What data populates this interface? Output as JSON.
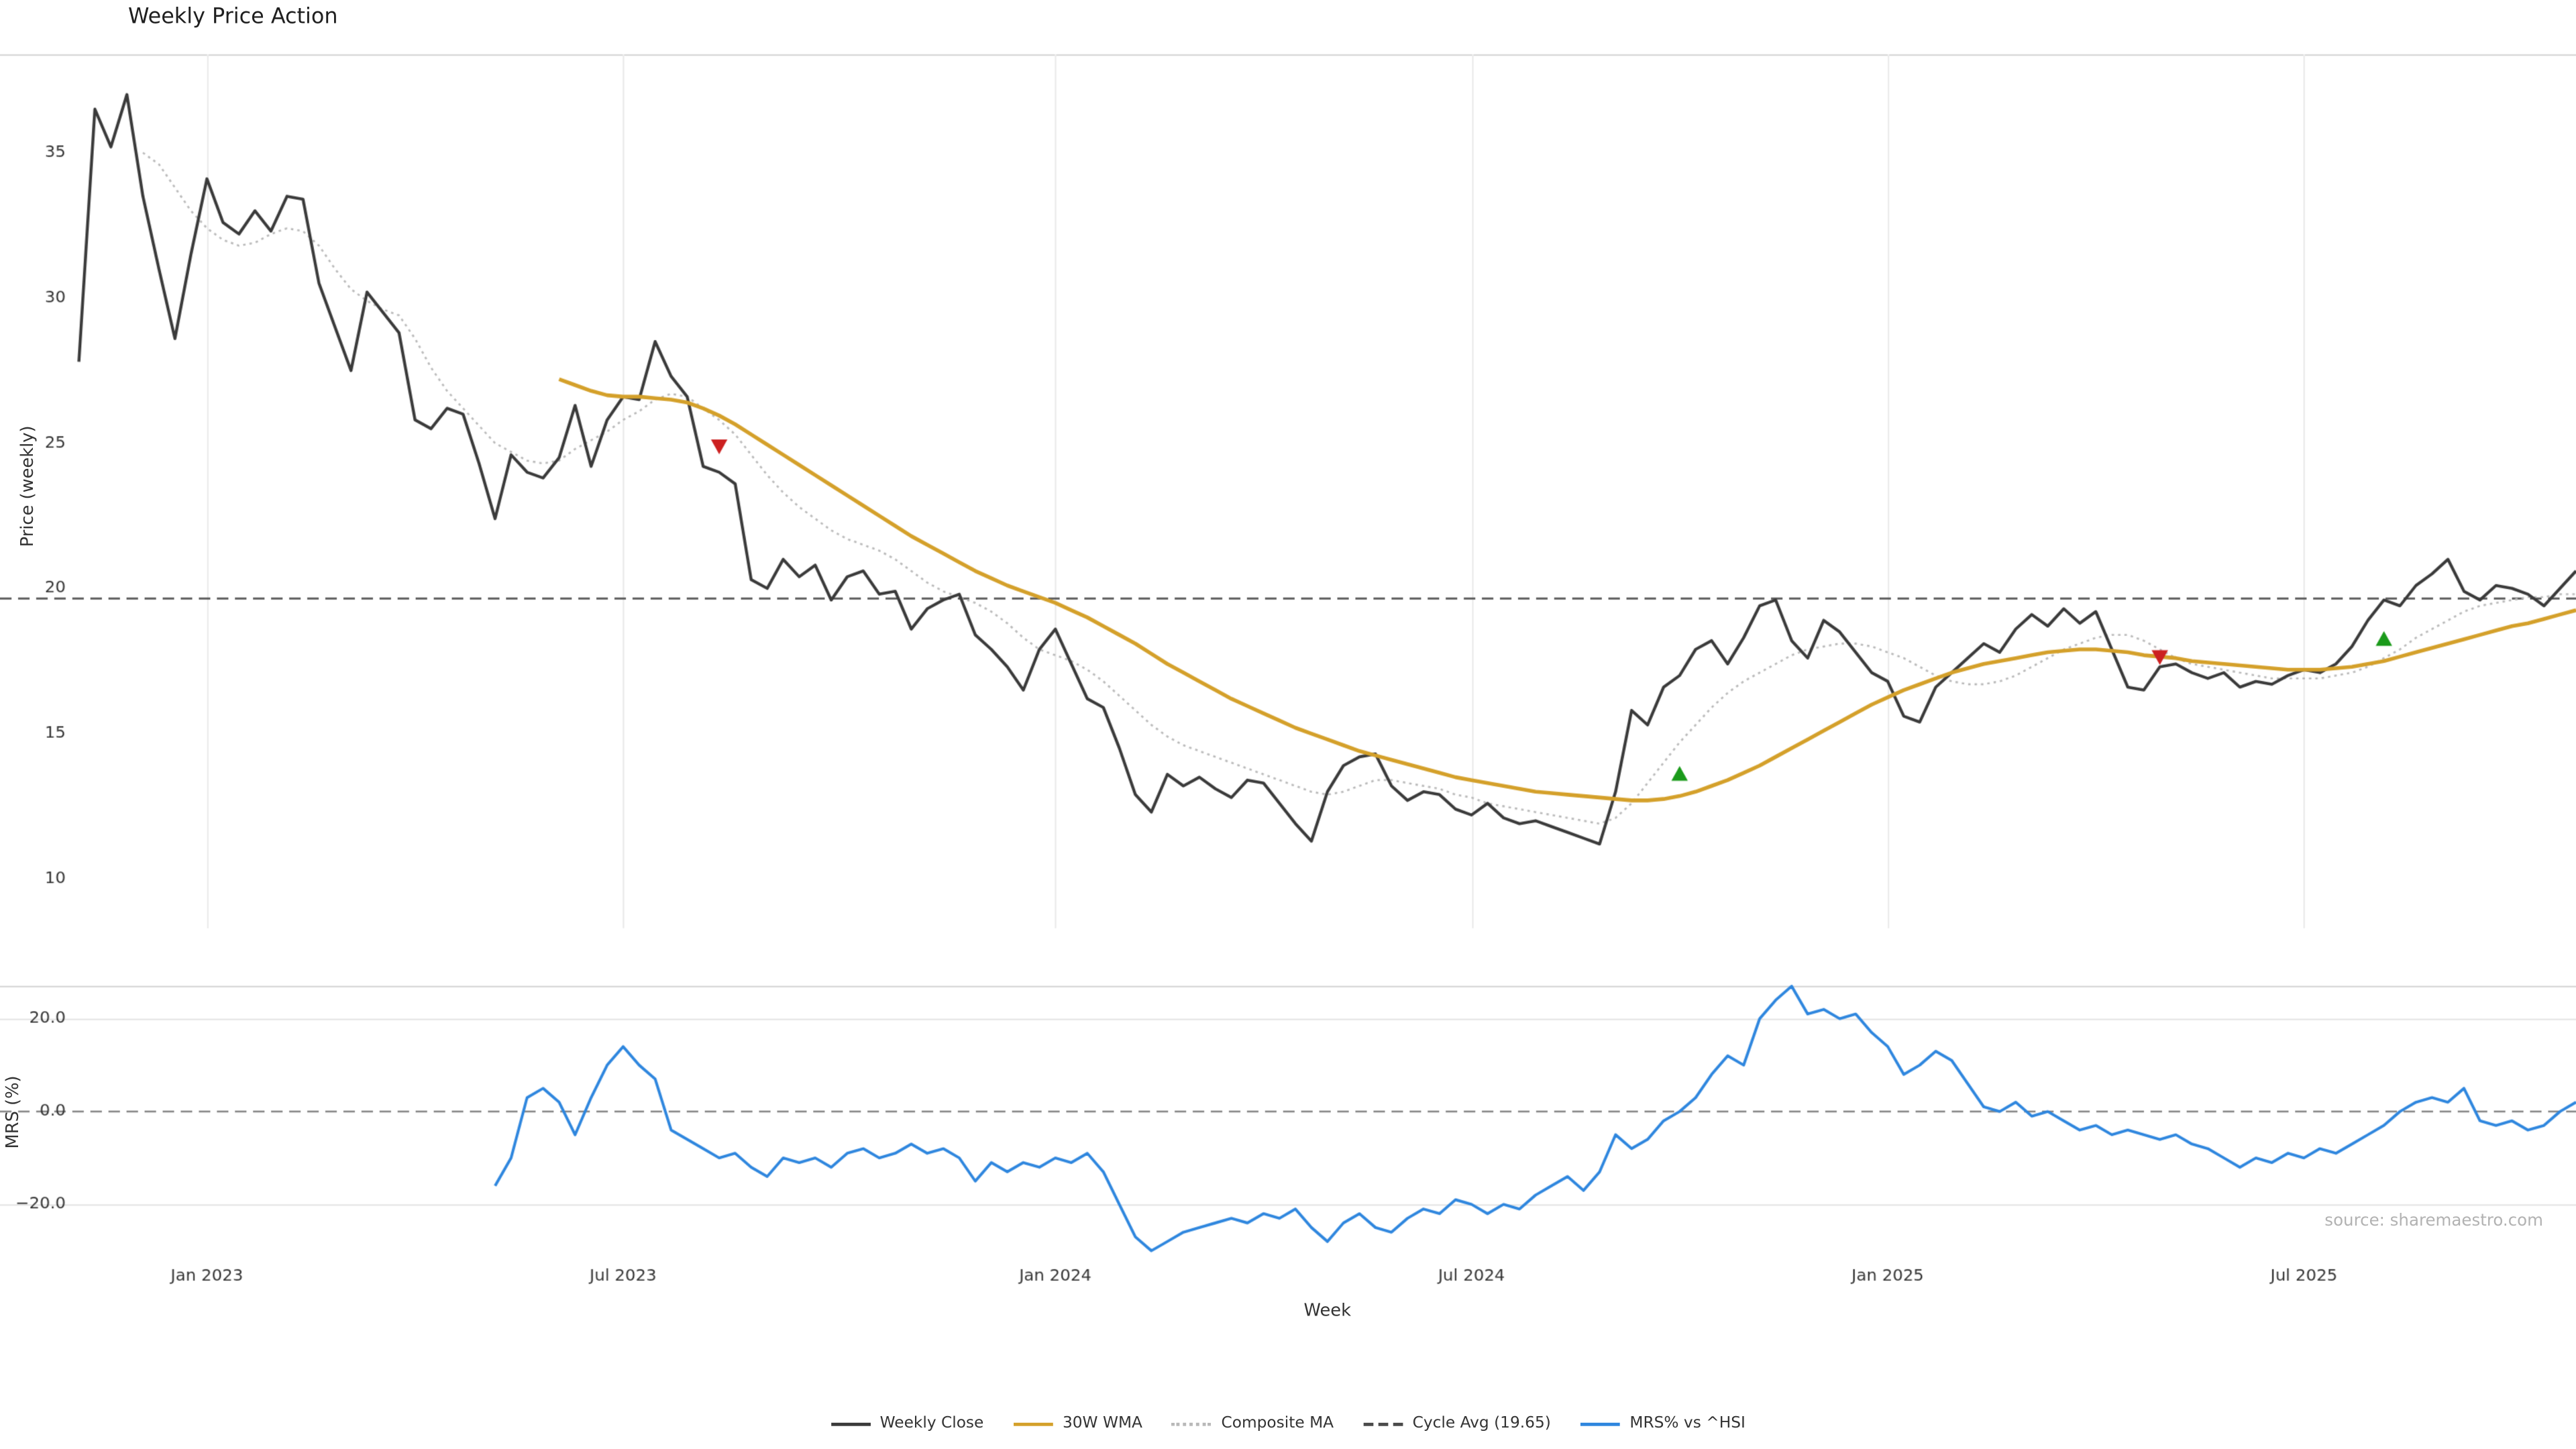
{
  "title": "Weekly Price Action",
  "source_note": "source: sharemaestro.com",
  "colors": {
    "close": "#3a3a3a",
    "wma": "#d4a02a",
    "composite": "#b9b9b9",
    "cycle_avg": "#4a4a4a",
    "mrs": "#2e86de",
    "buy_marker": "#1a9a1a",
    "sell_marker": "#cc2020",
    "grid": "#ececec",
    "grid_h": "#e7e7e7",
    "spine": "#d9d9d9",
    "zero_dash": "#8a8a8a",
    "tick_text": "#333333"
  },
  "chart_data": {
    "type": "line",
    "title": "Weekly Price Action",
    "xlabel": "Week",
    "x_count": 157,
    "xticks": [
      {
        "index": 8,
        "label": "Jan 2023"
      },
      {
        "index": 34,
        "label": "Jul 2023"
      },
      {
        "index": 61,
        "label": "Jan 2024"
      },
      {
        "index": 87,
        "label": "Jul 2024"
      },
      {
        "index": 113,
        "label": "Jan 2025"
      },
      {
        "index": 139,
        "label": "Jul 2025"
      }
    ],
    "panels": [
      {
        "name": "price",
        "ylabel": "Price (weekly)",
        "ylim": [
          8.3,
          38.39
        ],
        "yticks": [
          10,
          15,
          20,
          25,
          30,
          35
        ],
        "ytick_labels": [
          "10",
          "15",
          "20",
          "25",
          "30",
          "35"
        ],
        "cycle_avg": 19.65,
        "grid": "vertical"
      },
      {
        "name": "mrs",
        "ylabel": "MRS (%)",
        "ylim": [
          -31.3,
          27.1
        ],
        "yticks": [
          -20,
          0,
          20
        ],
        "ytick_labels": [
          "−20.0",
          "0.0",
          "20.0"
        ],
        "zero_line": 0,
        "grid": "horizontal"
      }
    ],
    "series": [
      {
        "name": "Weekly Close",
        "panel": "price",
        "color": "#3a3a3a",
        "width": 1.8,
        "dash": null,
        "start": 0,
        "values": [
          27.8,
          36.5,
          35.2,
          37.0,
          33.5,
          31.0,
          28.6,
          31.5,
          34.1,
          32.6,
          32.2,
          33.0,
          32.3,
          33.5,
          33.4,
          30.5,
          29.0,
          27.5,
          30.2,
          29.5,
          28.8,
          25.8,
          25.5,
          26.2,
          26.0,
          24.3,
          22.4,
          24.6,
          24.0,
          23.8,
          24.5,
          26.3,
          24.2,
          25.8,
          26.6,
          26.5,
          28.5,
          27.3,
          26.6,
          24.2,
          24.0,
          23.6,
          20.3,
          20.0,
          21.0,
          20.4,
          20.8,
          19.6,
          20.4,
          20.6,
          19.8,
          19.9,
          18.6,
          19.3,
          19.6,
          19.8,
          18.4,
          17.9,
          17.3,
          16.5,
          17.9,
          18.6,
          17.4,
          16.2,
          15.9,
          14.5,
          12.9,
          12.3,
          13.6,
          13.2,
          13.5,
          13.1,
          12.8,
          13.4,
          13.3,
          12.6,
          11.9,
          11.3,
          13.0,
          13.9,
          14.2,
          14.3,
          13.2,
          12.7,
          13.0,
          12.9,
          12.4,
          12.2,
          12.6,
          12.1,
          11.9,
          12.0,
          11.8,
          11.6,
          11.4,
          11.2,
          13.0,
          15.8,
          15.3,
          16.6,
          17.0,
          17.9,
          18.2,
          17.4,
          18.3,
          19.4,
          19.6,
          18.2,
          17.6,
          18.9,
          18.5,
          17.8,
          17.1,
          16.8,
          15.6,
          15.4,
          16.6,
          17.1,
          17.6,
          18.1,
          17.8,
          18.6,
          19.1,
          18.7,
          19.3,
          18.8,
          19.2,
          17.9,
          16.6,
          16.5,
          17.3,
          17.4,
          17.1,
          16.9,
          17.1,
          16.6,
          16.8,
          16.7,
          17.0,
          17.2,
          17.1,
          17.4,
          18.0,
          18.9,
          19.6,
          19.4,
          20.1,
          20.5,
          21.0,
          19.9,
          19.6,
          20.1,
          20.0,
          19.8,
          19.4,
          20.0,
          20.6
        ]
      },
      {
        "name": "30W WMA",
        "panel": "price",
        "color": "#d4a02a",
        "width": 2.3,
        "dash": null,
        "start": 30,
        "values": [
          27.2,
          27.0,
          26.8,
          26.65,
          26.6,
          26.6,
          26.55,
          26.5,
          26.4,
          26.2,
          25.95,
          25.65,
          25.3,
          24.95,
          24.6,
          24.25,
          23.9,
          23.55,
          23.2,
          22.85,
          22.5,
          22.15,
          21.8,
          21.5,
          21.2,
          20.9,
          20.6,
          20.35,
          20.1,
          19.9,
          19.7,
          19.5,
          19.25,
          19.0,
          18.7,
          18.4,
          18.1,
          17.75,
          17.4,
          17.1,
          16.8,
          16.5,
          16.2,
          15.95,
          15.7,
          15.45,
          15.2,
          15.0,
          14.8,
          14.6,
          14.4,
          14.25,
          14.1,
          13.95,
          13.8,
          13.65,
          13.5,
          13.4,
          13.3,
          13.2,
          13.1,
          13.0,
          12.95,
          12.9,
          12.85,
          12.8,
          12.75,
          12.7,
          12.7,
          12.75,
          12.85,
          13.0,
          13.2,
          13.4,
          13.65,
          13.9,
          14.2,
          14.5,
          14.8,
          15.1,
          15.4,
          15.7,
          16.0,
          16.25,
          16.5,
          16.7,
          16.9,
          17.1,
          17.25,
          17.4,
          17.5,
          17.6,
          17.7,
          17.8,
          17.85,
          17.9,
          17.9,
          17.85,
          17.8,
          17.7,
          17.65,
          17.6,
          17.5,
          17.45,
          17.4,
          17.35,
          17.3,
          17.25,
          17.2,
          17.2,
          17.2,
          17.25,
          17.3,
          17.4,
          17.5,
          17.65,
          17.8,
          17.95,
          18.1,
          18.25,
          18.4,
          18.55,
          18.7,
          18.8,
          18.95,
          19.1,
          19.25
        ]
      },
      {
        "name": "Composite MA",
        "panel": "price",
        "color": "#b9b9b9",
        "width": 1.2,
        "dash": [
          1.5,
          2.4
        ],
        "start": 4,
        "values": [
          35.0,
          34.6,
          33.8,
          33.0,
          32.4,
          32.0,
          31.8,
          31.9,
          32.2,
          32.4,
          32.3,
          31.8,
          31.0,
          30.3,
          29.9,
          29.6,
          29.4,
          28.6,
          27.6,
          26.8,
          26.2,
          25.6,
          25.0,
          24.7,
          24.4,
          24.3,
          24.4,
          24.8,
          25.1,
          25.4,
          25.8,
          26.1,
          26.5,
          26.7,
          26.6,
          26.2,
          25.8,
          25.3,
          24.6,
          23.9,
          23.3,
          22.8,
          22.4,
          22.0,
          21.7,
          21.5,
          21.3,
          21.0,
          20.6,
          20.2,
          19.9,
          19.7,
          19.5,
          19.2,
          18.8,
          18.3,
          17.9,
          17.7,
          17.5,
          17.2,
          16.8,
          16.3,
          15.8,
          15.3,
          14.9,
          14.6,
          14.4,
          14.2,
          14.0,
          13.8,
          13.6,
          13.4,
          13.2,
          13.0,
          12.9,
          13.0,
          13.2,
          13.4,
          13.4,
          13.3,
          13.2,
          13.1,
          12.9,
          12.8,
          12.6,
          12.5,
          12.4,
          12.3,
          12.2,
          12.1,
          12.0,
          11.9,
          12.1,
          12.6,
          13.3,
          14.0,
          14.7,
          15.3,
          15.9,
          16.4,
          16.8,
          17.1,
          17.4,
          17.7,
          17.9,
          18.0,
          18.1,
          18.1,
          18.0,
          17.8,
          17.6,
          17.3,
          17.0,
          16.8,
          16.7,
          16.7,
          16.8,
          17.0,
          17.3,
          17.6,
          17.9,
          18.1,
          18.3,
          18.4,
          18.4,
          18.2,
          17.9,
          17.6,
          17.4,
          17.3,
          17.2,
          17.1,
          17.0,
          16.9,
          16.9,
          16.9,
          16.9,
          17.0,
          17.1,
          17.3,
          17.6,
          17.9,
          18.3,
          18.6,
          18.9,
          19.2,
          19.4,
          19.5,
          19.6,
          19.7,
          19.7,
          19.8,
          19.8
        ]
      },
      {
        "name": "MRS% vs ^HSI",
        "panel": "mrs",
        "color": "#2e86de",
        "width": 1.7,
        "dash": null,
        "start": 26,
        "values": [
          -16,
          -10,
          3,
          5,
          2,
          -5,
          3,
          10,
          14,
          10,
          7,
          -4,
          -6,
          -8,
          -10,
          -9,
          -12,
          -14,
          -10,
          -11,
          -10,
          -12,
          -9,
          -8,
          -10,
          -9,
          -7,
          -9,
          -8,
          -10,
          -15,
          -11,
          -13,
          -11,
          -12,
          -10,
          -11,
          -9,
          -13,
          -20,
          -27,
          -30,
          -28,
          -26,
          -25,
          -24,
          -23,
          -24,
          -22,
          -23,
          -21,
          -25,
          -28,
          -24,
          -22,
          -25,
          -26,
          -23,
          -21,
          -22,
          -19,
          -20,
          -22,
          -20,
          -21,
          -18,
          -16,
          -14,
          -17,
          -13,
          -5,
          -8,
          -6,
          -2,
          0,
          3,
          8,
          12,
          10,
          20,
          24,
          27,
          21,
          22,
          20,
          21,
          17,
          14,
          8,
          10,
          13,
          11,
          6,
          1,
          0,
          2,
          -1,
          0,
          -2,
          -4,
          -3,
          -5,
          -4,
          -5,
          -6,
          -5,
          -7,
          -8,
          -10,
          -12,
          -10,
          -11,
          -9,
          -10,
          -8,
          -9,
          -7,
          -5,
          -3,
          0,
          2,
          3,
          2,
          5,
          -2,
          -3,
          -2,
          -4,
          -3,
          0,
          2
        ]
      }
    ],
    "markers": {
      "sell": [
        {
          "week": 40,
          "price": 24.9
        },
        {
          "week": 130,
          "price": 17.65
        }
      ],
      "buy": [
        {
          "week": 100,
          "price": 13.6
        },
        {
          "week": 144,
          "price": 18.25
        }
      ]
    },
    "legend": [
      {
        "label": "Weekly Close",
        "color": "#3a3a3a",
        "style": "solid"
      },
      {
        "label": "30W WMA",
        "color": "#d4a02a",
        "style": "solid"
      },
      {
        "label": "Composite MA",
        "color": "#b9b9b9",
        "style": "dotted"
      },
      {
        "label": "Cycle Avg (19.65)",
        "color": "#4a4a4a",
        "style": "dashed"
      },
      {
        "label": "MRS% vs ^HSI",
        "color": "#2e86de",
        "style": "solid"
      }
    ]
  }
}
